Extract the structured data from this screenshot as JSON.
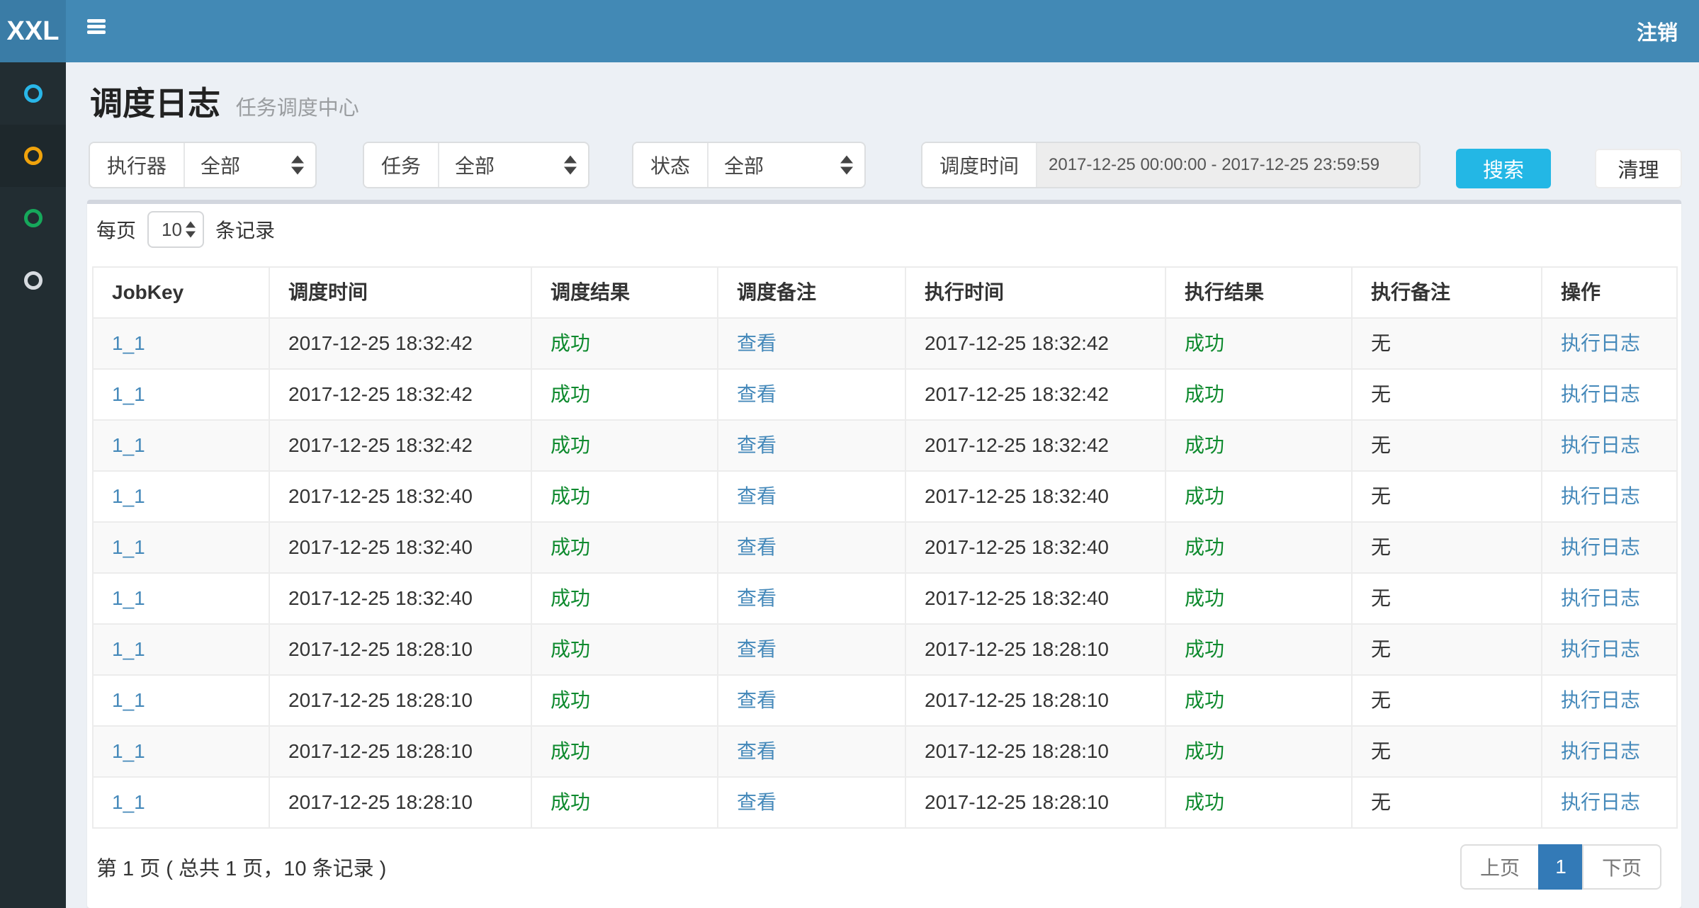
{
  "navbar": {
    "brand": "XXL",
    "logout": "注销"
  },
  "sidebar": {
    "items": [
      {
        "name": "nav-dashboard",
        "color": "#29b6e8",
        "active": false
      },
      {
        "name": "nav-job-log",
        "color": "#f0a30c",
        "active": true
      },
      {
        "name": "nav-job-manage",
        "color": "#16a85b",
        "active": false
      },
      {
        "name": "nav-executor",
        "color": "#d7dbe0",
        "active": false
      }
    ]
  },
  "header": {
    "title": "调度日志",
    "subtitle": "任务调度中心"
  },
  "filters": {
    "executor": {
      "label": "执行器",
      "value": "全部"
    },
    "job": {
      "label": "任务",
      "value": "全部"
    },
    "status": {
      "label": "状态",
      "value": "全部"
    },
    "trigger_time": {
      "label": "调度时间",
      "value": "2017-12-25 00:00:00 - 2017-12-25 23:59:59"
    },
    "search": "搜索",
    "clear": "清理"
  },
  "page_size": {
    "prefix": "每页",
    "value": "10",
    "suffix": "条记录"
  },
  "table": {
    "columns": [
      "JobKey",
      "调度时间",
      "调度结果",
      "调度备注",
      "执行时间",
      "执行结果",
      "执行备注",
      "操作"
    ],
    "rows": [
      {
        "job_key": "1_1",
        "trigger_time": "2017-12-25 18:32:42",
        "trigger_result": "成功",
        "trigger_msg": "查看",
        "handle_time": "2017-12-25 18:32:42",
        "handle_result": "成功",
        "handle_msg": "无",
        "action": "执行日志"
      },
      {
        "job_key": "1_1",
        "trigger_time": "2017-12-25 18:32:42",
        "trigger_result": "成功",
        "trigger_msg": "查看",
        "handle_time": "2017-12-25 18:32:42",
        "handle_result": "成功",
        "handle_msg": "无",
        "action": "执行日志"
      },
      {
        "job_key": "1_1",
        "trigger_time": "2017-12-25 18:32:42",
        "trigger_result": "成功",
        "trigger_msg": "查看",
        "handle_time": "2017-12-25 18:32:42",
        "handle_result": "成功",
        "handle_msg": "无",
        "action": "执行日志"
      },
      {
        "job_key": "1_1",
        "trigger_time": "2017-12-25 18:32:40",
        "trigger_result": "成功",
        "trigger_msg": "查看",
        "handle_time": "2017-12-25 18:32:40",
        "handle_result": "成功",
        "handle_msg": "无",
        "action": "执行日志"
      },
      {
        "job_key": "1_1",
        "trigger_time": "2017-12-25 18:32:40",
        "trigger_result": "成功",
        "trigger_msg": "查看",
        "handle_time": "2017-12-25 18:32:40",
        "handle_result": "成功",
        "handle_msg": "无",
        "action": "执行日志"
      },
      {
        "job_key": "1_1",
        "trigger_time": "2017-12-25 18:32:40",
        "trigger_result": "成功",
        "trigger_msg": "查看",
        "handle_time": "2017-12-25 18:32:40",
        "handle_result": "成功",
        "handle_msg": "无",
        "action": "执行日志"
      },
      {
        "job_key": "1_1",
        "trigger_time": "2017-12-25 18:28:10",
        "trigger_result": "成功",
        "trigger_msg": "查看",
        "handle_time": "2017-12-25 18:28:10",
        "handle_result": "成功",
        "handle_msg": "无",
        "action": "执行日志"
      },
      {
        "job_key": "1_1",
        "trigger_time": "2017-12-25 18:28:10",
        "trigger_result": "成功",
        "trigger_msg": "查看",
        "handle_time": "2017-12-25 18:28:10",
        "handle_result": "成功",
        "handle_msg": "无",
        "action": "执行日志"
      },
      {
        "job_key": "1_1",
        "trigger_time": "2017-12-25 18:28:10",
        "trigger_result": "成功",
        "trigger_msg": "查看",
        "handle_time": "2017-12-25 18:28:10",
        "handle_result": "成功",
        "handle_msg": "无",
        "action": "执行日志"
      },
      {
        "job_key": "1_1",
        "trigger_time": "2017-12-25 18:28:10",
        "trigger_result": "成功",
        "trigger_msg": "查看",
        "handle_time": "2017-12-25 18:28:10",
        "handle_result": "成功",
        "handle_msg": "无",
        "action": "执行日志"
      }
    ]
  },
  "footer": {
    "summary": "第 1 页 ( 总共 1 页，10 条记录 )",
    "pagination": {
      "prev": "上页",
      "current": "1",
      "next": "下页"
    }
  },
  "colors": {
    "navbar_bg": "#4289b5",
    "brand_bg": "#3a7ca6",
    "sidebar_bg": "#222d32",
    "sidebar_active_bg": "#1e282c",
    "content_bg": "#ecf0f5",
    "box_top_border": "#d2d6de",
    "search_btn": "#23b7e5",
    "link": "#4589ba",
    "success": "#0e8a2e",
    "pagination_active": "#337ab7",
    "row_stripe": "#f9f9f9"
  }
}
